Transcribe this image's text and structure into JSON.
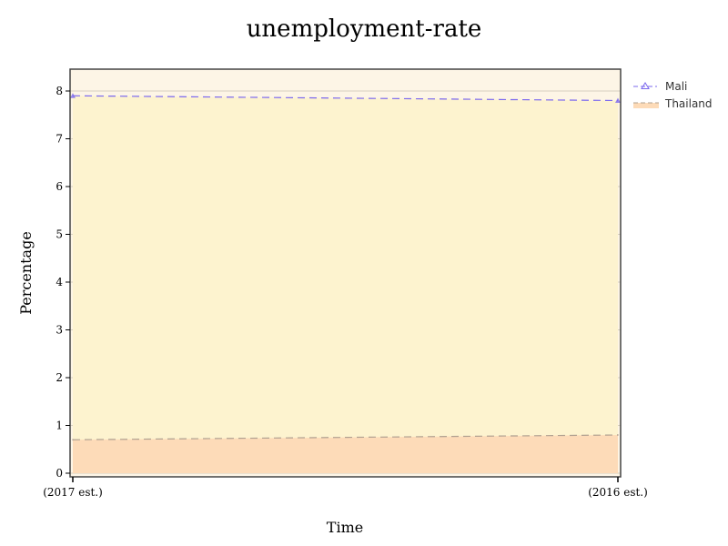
{
  "chart_data": {
    "type": "area",
    "title": "unemployment-rate",
    "xlabel": "Time",
    "ylabel": "Percentage",
    "categories": [
      "(2017 est.)",
      "(2016 est.)"
    ],
    "ylim": [
      0,
      8.5
    ],
    "yticks": [
      0,
      1,
      2,
      3,
      4,
      5,
      6,
      7,
      8
    ],
    "grid": true,
    "legend_position": "top-right",
    "series": [
      {
        "name": "Mali",
        "values": [
          7.9,
          7.8
        ],
        "line_color": "#7b68ee",
        "fill_color": "#fdf3cf",
        "line_style": "dashed",
        "marker": "triangle"
      },
      {
        "name": "Thailand",
        "values": [
          0.7,
          0.8
        ],
        "line_color": "#b0a090",
        "fill_color": "#fddbb8",
        "line_style": "dashed",
        "marker": "none"
      }
    ],
    "colors": {
      "plot_background": "#fdf5e6",
      "grid": "#d8d0c0",
      "frame": "#444444"
    }
  }
}
